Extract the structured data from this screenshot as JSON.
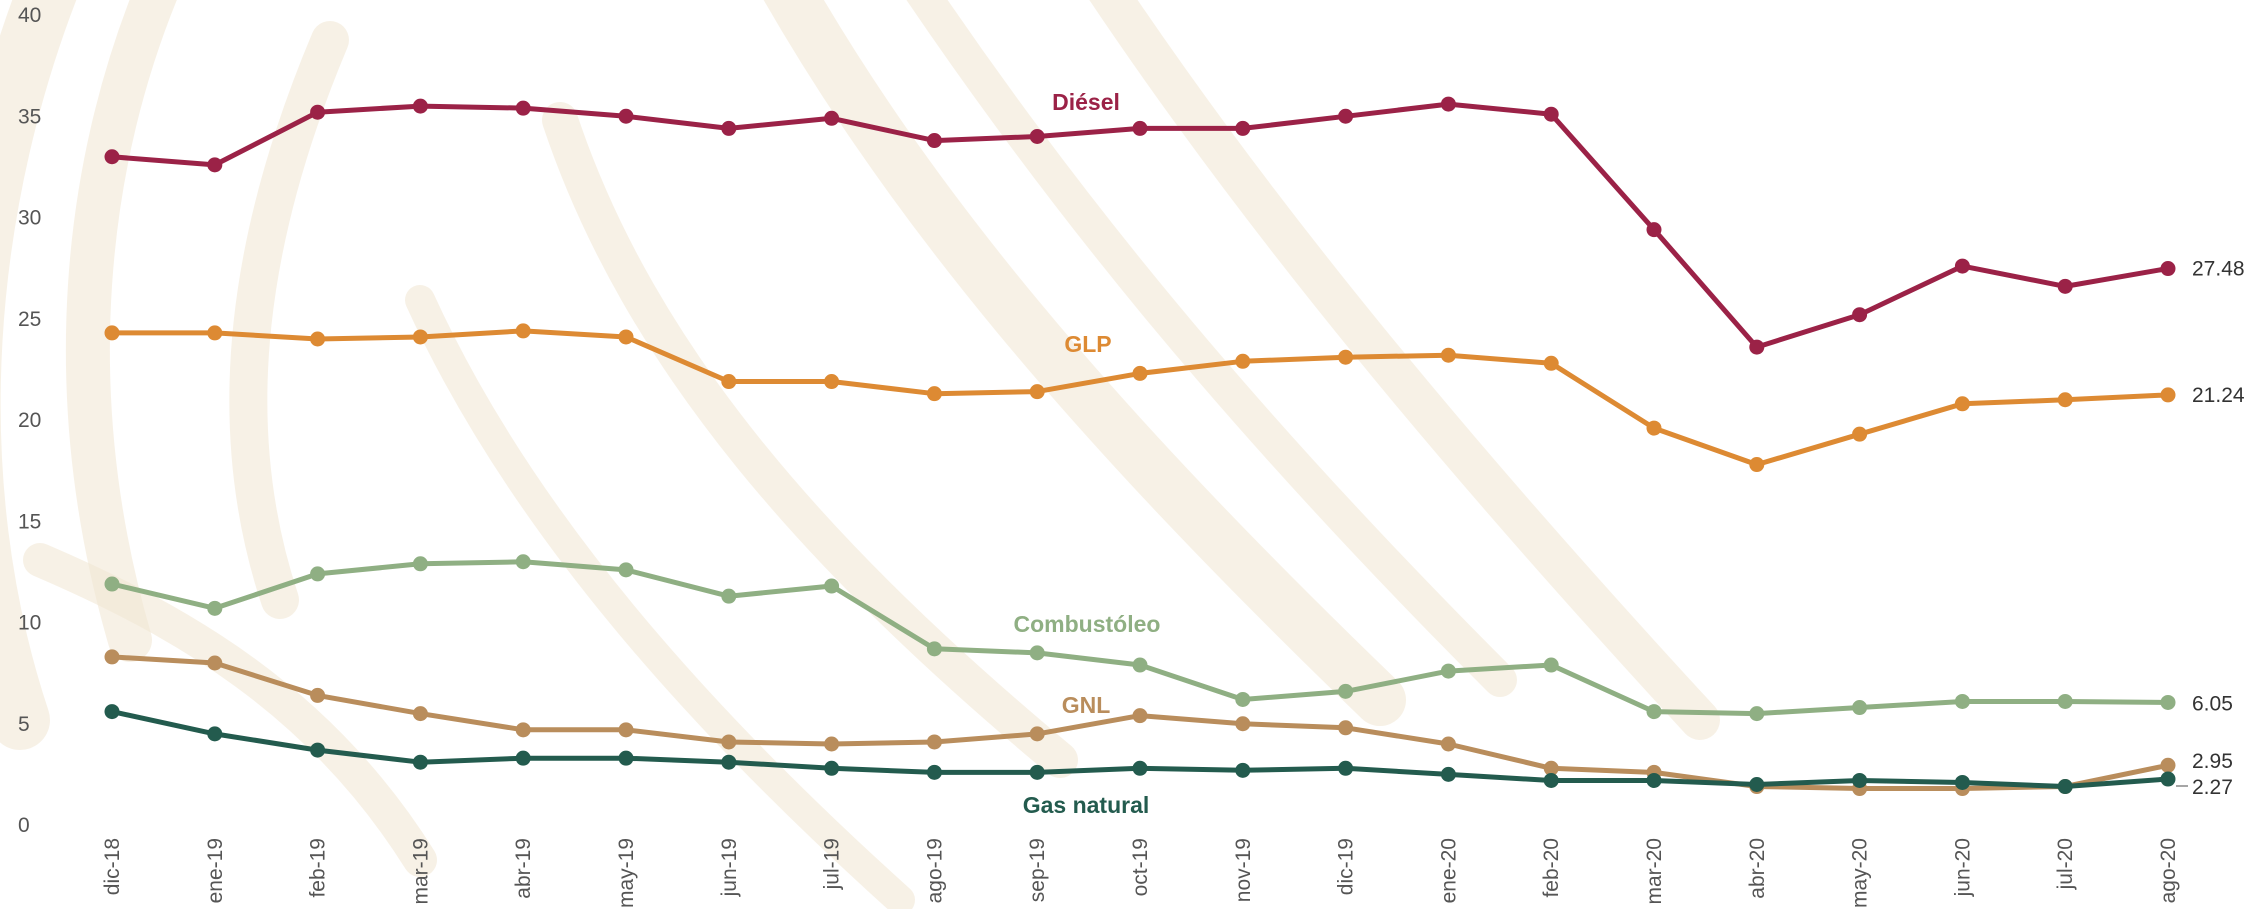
{
  "chart_data": {
    "type": "line",
    "categories": [
      "dic-18",
      "ene-19",
      "feb-19",
      "mar-19",
      "abr-19",
      "may-19",
      "jun-19",
      "jul-19",
      "ago-19",
      "sep-19",
      "oct-19",
      "nov-19",
      "dic-19",
      "ene-20",
      "feb-20",
      "mar-20",
      "abr-20",
      "may-20",
      "jun-20",
      "jul-20",
      "ago-20"
    ],
    "ylim": [
      0,
      40
    ],
    "yticks": [
      "0",
      "5",
      "10",
      "15",
      "20",
      "25",
      "30",
      "35",
      "40"
    ],
    "grid": false,
    "legend": "inline labels",
    "series": [
      {
        "name": "Diésel",
        "color": "#9b2247",
        "values": [
          33.0,
          32.6,
          35.2,
          35.5,
          35.4,
          35.0,
          34.4,
          34.9,
          33.8,
          34.0,
          34.4,
          34.4,
          35.0,
          35.6,
          35.1,
          29.4,
          23.6,
          25.2,
          27.6,
          26.6,
          27.48
        ],
        "end_label": "27.48"
      },
      {
        "name": "GLP",
        "color": "#dd8a33",
        "values": [
          24.3,
          24.3,
          24.0,
          24.1,
          24.4,
          24.1,
          21.9,
          21.9,
          21.3,
          21.4,
          22.3,
          22.9,
          23.1,
          23.2,
          22.8,
          19.6,
          17.8,
          19.3,
          20.8,
          21.0,
          21.24
        ],
        "end_label": "21.24"
      },
      {
        "name": "Combustóleo",
        "color": "#8faf83",
        "values": [
          11.9,
          10.7,
          12.4,
          12.9,
          13.0,
          12.6,
          11.3,
          11.8,
          8.7,
          8.5,
          7.9,
          6.2,
          6.6,
          7.6,
          7.9,
          5.6,
          5.5,
          5.8,
          6.1,
          6.1,
          6.05
        ],
        "end_label": "6.05"
      },
      {
        "name": "GNL",
        "color": "#b98d5c",
        "values": [
          8.3,
          8.0,
          6.4,
          5.5,
          4.7,
          4.7,
          4.1,
          4.0,
          4.1,
          4.5,
          5.4,
          5.0,
          4.8,
          4.0,
          2.8,
          2.6,
          1.9,
          1.8,
          1.8,
          1.9,
          2.95
        ],
        "end_label": "2.95"
      },
      {
        "name": "Gas natural",
        "color": "#235b4e",
        "values": [
          5.6,
          4.5,
          3.7,
          3.1,
          3.3,
          3.3,
          3.1,
          2.8,
          2.6,
          2.6,
          2.8,
          2.7,
          2.8,
          2.5,
          2.2,
          2.2,
          2.0,
          2.2,
          2.1,
          1.9,
          2.27
        ],
        "end_label": "2.27"
      }
    ]
  }
}
